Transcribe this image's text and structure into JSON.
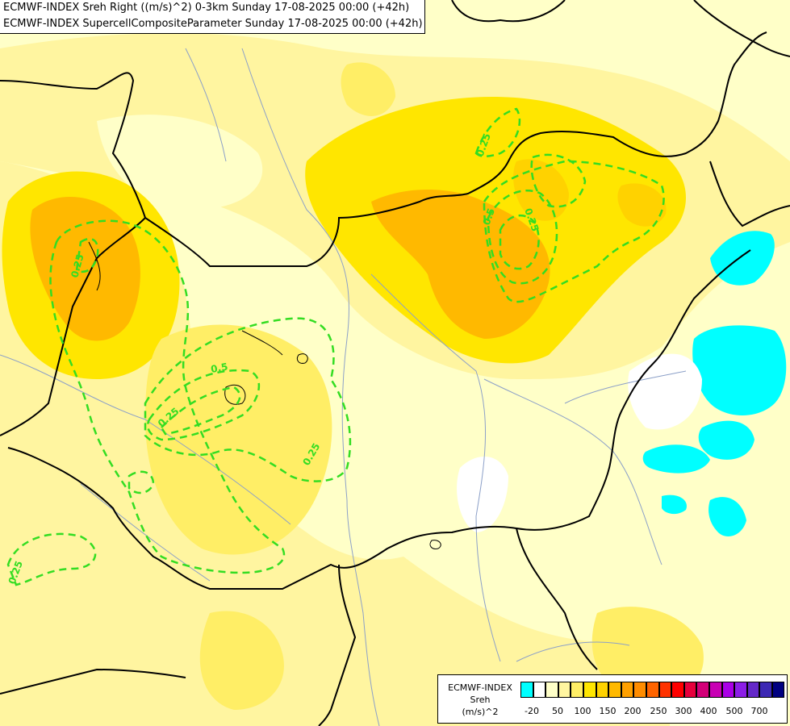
{
  "header": {
    "line1": "ECMWF-INDEX Sreh Right ((m/s)^2) 0-3km Sunday 17-08-2025 00:00 (+42h)",
    "line2": "ECMWF-INDEX SupercellCompositeParameter Sunday 17-08-2025 00:00 (+42h)"
  },
  "contour_labels": [
    "0.25",
    "0.25",
    "0.25",
    "0.25",
    "0.25",
    "0.5",
    "0.5",
    "0.25"
  ],
  "legend": {
    "model": "ECMWF-INDEX",
    "variable": "Sreh",
    "unit": "(m/s)^2",
    "colors": [
      "#00ffff",
      "#ffffff",
      "#ffffc8",
      "#fff5a0",
      "#ffee66",
      "#ffe600",
      "#ffd200",
      "#ffb900",
      "#ffa000",
      "#ff8c00",
      "#ff6400",
      "#ff3200",
      "#ff0000",
      "#e6003c",
      "#d20078",
      "#c800b4",
      "#aa00e6",
      "#8c1ee6",
      "#6428c8",
      "#3c28b4",
      "#000080"
    ],
    "ticks": [
      "-20",
      "50",
      "100",
      "150",
      "200",
      "250",
      "300",
      "400",
      "500",
      "700"
    ]
  },
  "colors": {
    "contour": "#33dd22",
    "border": "#000000",
    "river": "#8ca0c8"
  }
}
